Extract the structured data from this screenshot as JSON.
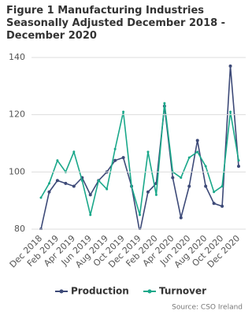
{
  "chart_data": {
    "type": "line",
    "title": "Figure 1 Manufacturing Industries Seasonally Adjusted December 2018 - December 2020",
    "categories": [
      "Dec 2018",
      null,
      "Feb 2019",
      null,
      "Apr 2019",
      null,
      "Jun 2019",
      null,
      "Aug 2019",
      null,
      "Oct 2019",
      null,
      "Dec 2019",
      null,
      "Feb 2020",
      null,
      "Apr 2020",
      null,
      "Jun 2020",
      null,
      "Aug 2020",
      null,
      "Oct 2020",
      null,
      "Dec 2020"
    ],
    "series": [
      {
        "name": "Production",
        "color": "#3d4a78",
        "values": [
          80,
          93,
          97,
          96,
          95,
          98,
          92,
          97,
          100,
          104,
          105,
          95,
          79,
          93,
          96,
          123,
          98,
          84,
          95,
          111,
          95,
          89,
          88,
          137,
          102
        ]
      },
      {
        "name": "Turnover",
        "color": "#1aa88a",
        "values": [
          91,
          96,
          104,
          100,
          107,
          97,
          85,
          97,
          94,
          108,
          121,
          95,
          85,
          107,
          92,
          124,
          100,
          98,
          105,
          107,
          102,
          93,
          95,
          121,
          104
        ]
      }
    ],
    "ylim": [
      80,
      140
    ],
    "yticks": [
      80,
      100,
      120,
      140
    ],
    "grid": true,
    "source": "Source: CSO Ireland"
  }
}
